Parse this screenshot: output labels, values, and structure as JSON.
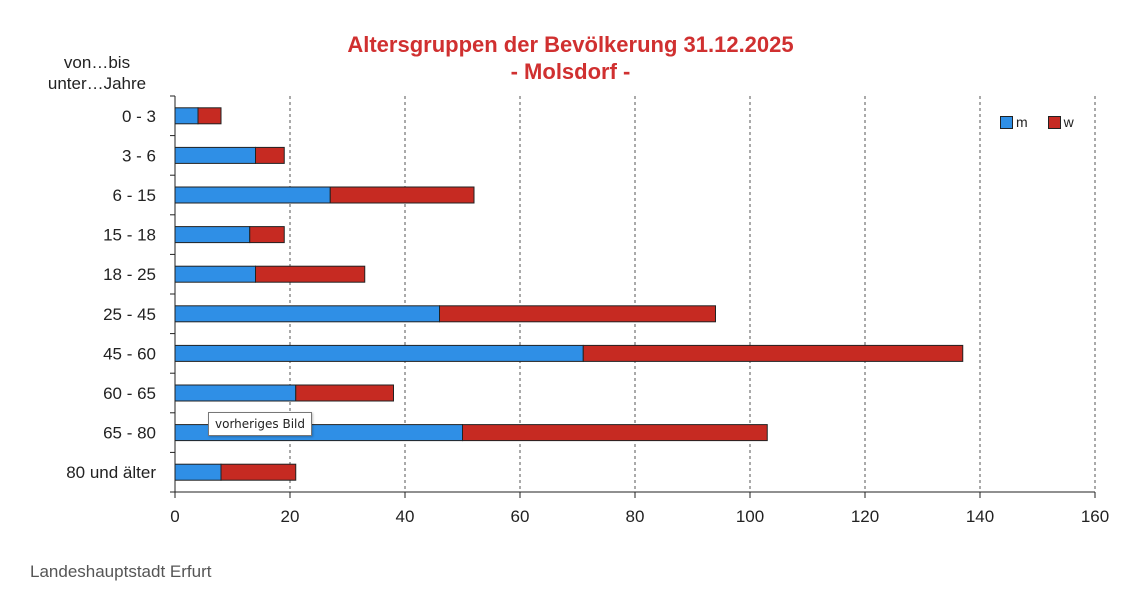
{
  "chart_data": {
    "type": "bar",
    "orientation": "horizontal",
    "stacked": true,
    "title": "Altersgruppen der Bevölkerung 31.12.2025",
    "subtitle": "- Molsdorf -",
    "ylabel": "von…bis unter…Jahre",
    "ylabel_line1": "von…bis",
    "ylabel_line2": "unter…Jahre",
    "categories": [
      "0 - 3",
      "3 - 6",
      "6 - 15",
      "15 - 18",
      "18 - 25",
      "25 - 45",
      "45 - 60",
      "60 - 65",
      "65 - 80",
      "80 und älter"
    ],
    "series": [
      {
        "name": "m",
        "color": "#2f8fe6",
        "values": [
          4,
          14,
          27,
          13,
          14,
          46,
          71,
          21,
          50,
          8
        ]
      },
      {
        "name": "w",
        "color": "#c62a22",
        "values": [
          4,
          5,
          25,
          6,
          19,
          48,
          66,
          17,
          53,
          13
        ]
      }
    ],
    "xlim": [
      0,
      160
    ],
    "xticks": [
      0,
      20,
      40,
      60,
      80,
      100,
      120,
      140,
      160
    ],
    "grid": "vertical dashed",
    "legend_position": "top-right"
  },
  "footer": "Landeshauptstadt  Erfurt",
  "tooltip": "vorheriges Bild"
}
